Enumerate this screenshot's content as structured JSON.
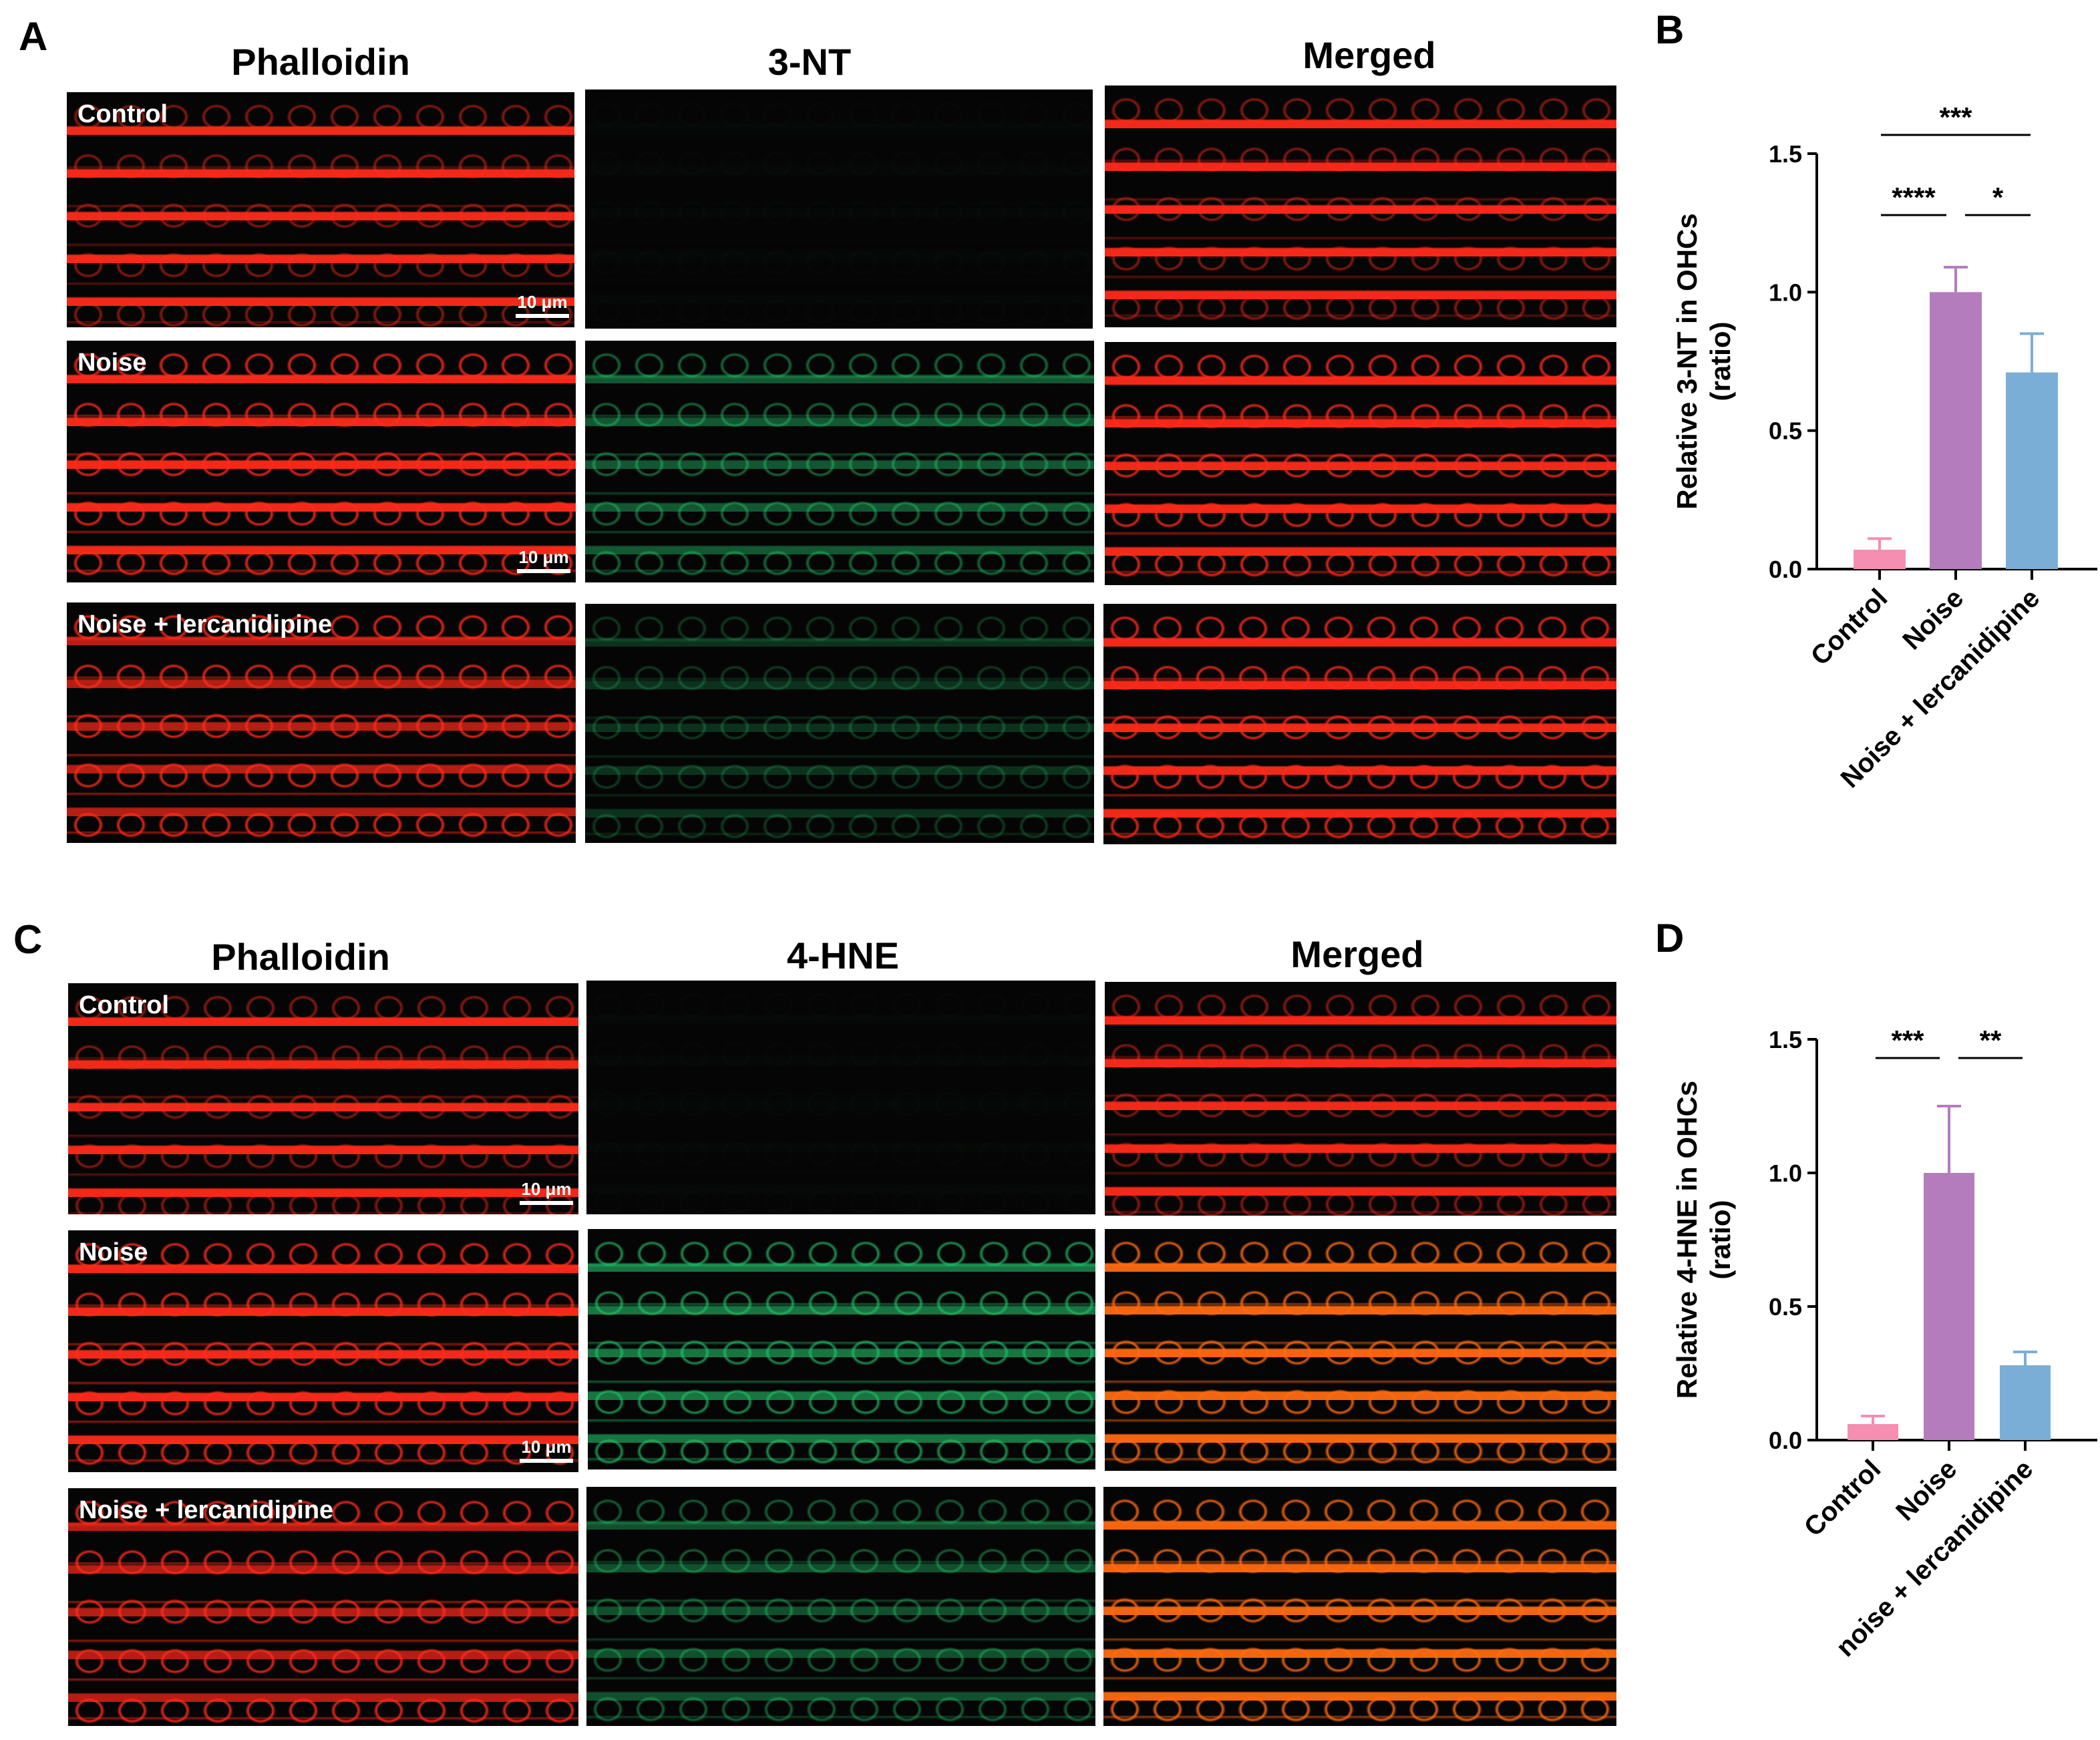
{
  "panels": {
    "A": "A",
    "B": "B",
    "C": "C",
    "D": "D"
  },
  "grid_top": {
    "columns": [
      "Phalloidin",
      "3-NT",
      "Merged"
    ],
    "rows": [
      "Control",
      "Noise",
      "Noise + lercanidipine"
    ],
    "scalebar": "10 μm"
  },
  "grid_bottom": {
    "columns": [
      "Phalloidin",
      "4-HNE",
      "Merged"
    ],
    "rows": [
      "Control",
      "Noise",
      "Noise + lercanidipine"
    ],
    "scalebar": "10 μm"
  },
  "colors": {
    "control": "#f48fb1",
    "noise": "#b47cbc",
    "lercanidipine": "#7aaed6",
    "phalloidin": "#ff2a1a",
    "marker": "#23c06a"
  },
  "chart_data": [
    {
      "type": "bar",
      "categories": [
        "Control",
        "Noise",
        "Noise + lercanidipine"
      ],
      "values": [
        0.07,
        1.0,
        0.71
      ],
      "errors": [
        0.04,
        0.09,
        0.14
      ],
      "ylabel": "Relative 3-NT in OHCs (ratio)",
      "ylabel_lines": [
        "Relative 3-NT in OHCs",
        "(ratio)"
      ],
      "yticks": [
        "0.0",
        "0.5",
        "1.0",
        "1.5"
      ],
      "ylim": [
        0,
        1.5
      ],
      "significance": [
        {
          "from": 0,
          "to": 2,
          "label": "***"
        },
        {
          "from": 0,
          "to": 1,
          "label": "****"
        },
        {
          "from": 1,
          "to": 2,
          "label": "*"
        }
      ]
    },
    {
      "type": "bar",
      "categories": [
        "Control",
        "Noise",
        "noise + lercanidipine"
      ],
      "values": [
        0.06,
        1.0,
        0.28
      ],
      "errors": [
        0.03,
        0.25,
        0.05
      ],
      "ylabel": "Relative 4-HNE in OHCs (ratio)",
      "ylabel_lines": [
        "Relative 4-HNE in OHCs",
        "(ratio)"
      ],
      "yticks": [
        "0.0",
        "0.5",
        "1.0",
        "1.5"
      ],
      "ylim": [
        0,
        1.5
      ],
      "significance": [
        {
          "from": 0,
          "to": 1,
          "label": "***"
        },
        {
          "from": 1,
          "to": 2,
          "label": "**"
        }
      ]
    }
  ]
}
